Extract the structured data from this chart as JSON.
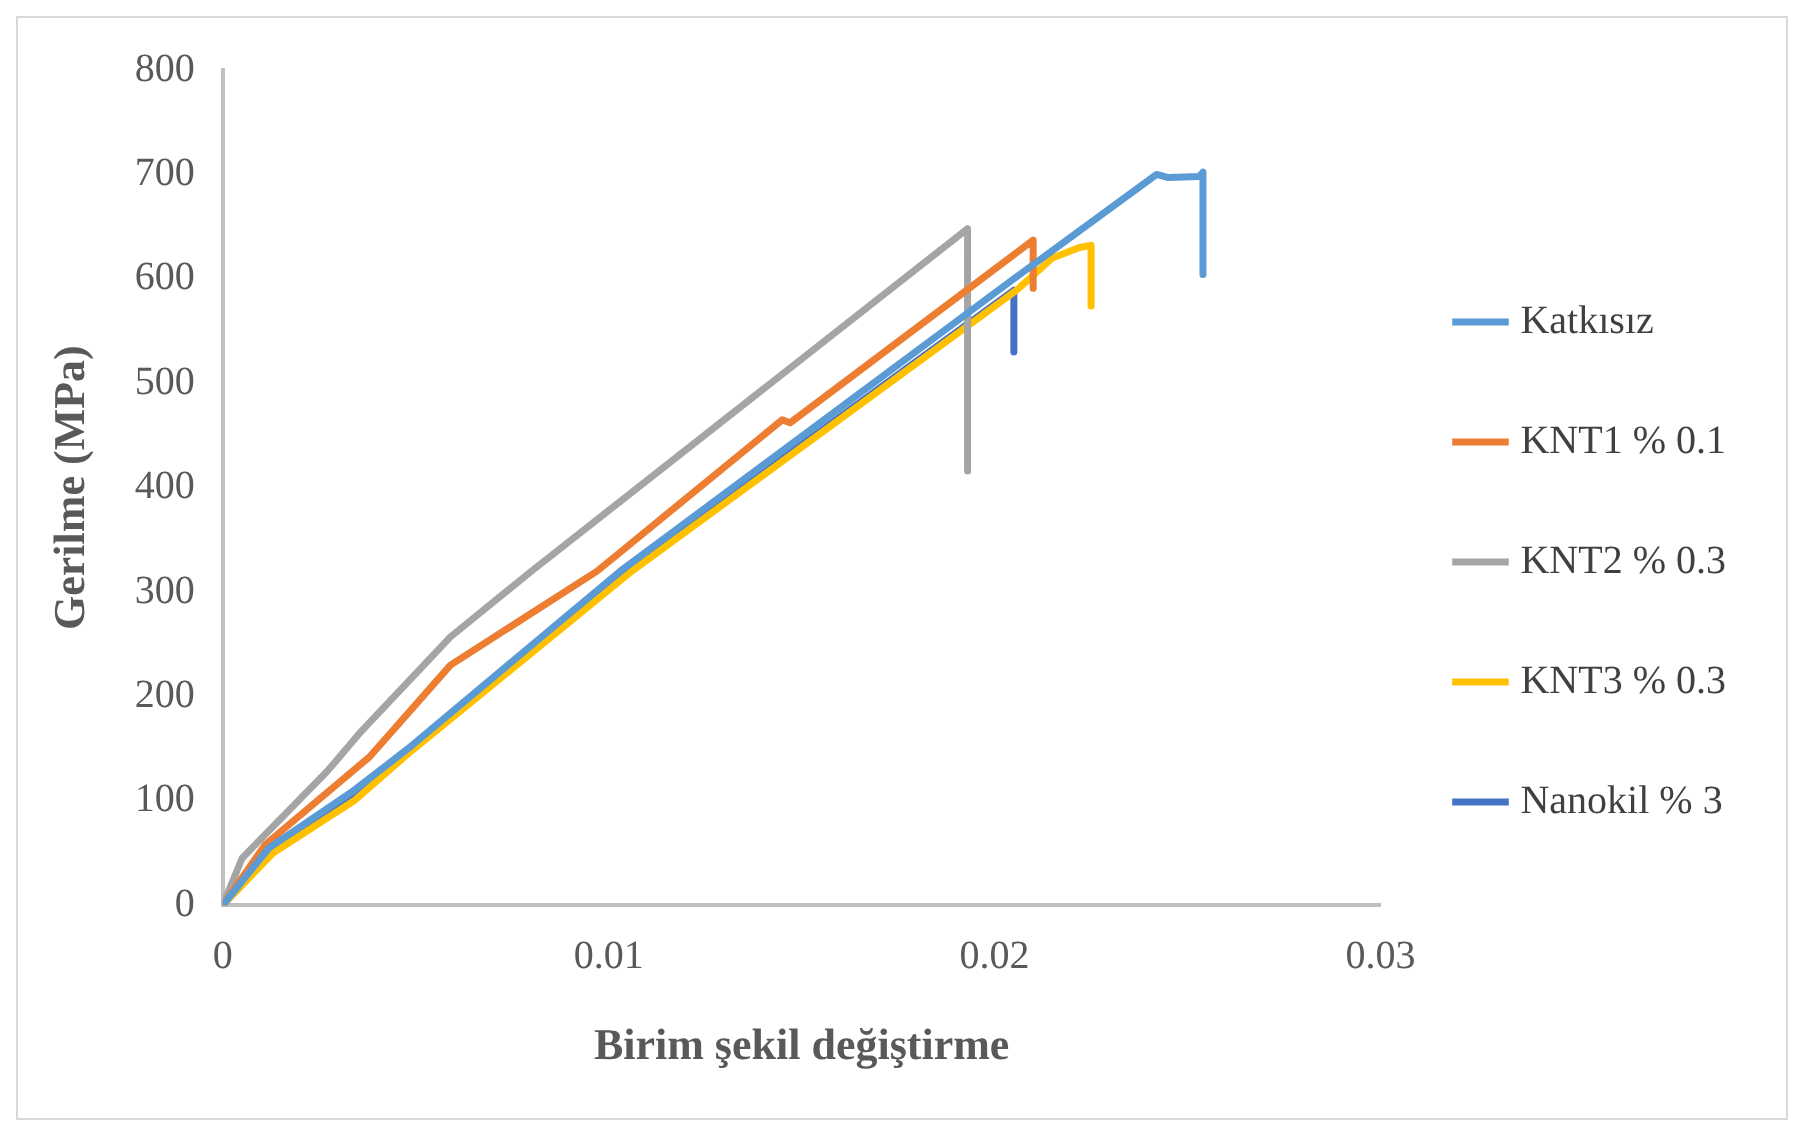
{
  "chart_data": {
    "type": "line",
    "xlabel": "Birim şekil değiştirme",
    "ylabel": "Gerilme (MPa)",
    "xlim": [
      0,
      0.03
    ],
    "xticks": [
      0,
      0.01,
      0.02,
      0.03
    ],
    "ylim": [
      0,
      800
    ],
    "yticks": [
      0,
      100,
      200,
      300,
      400,
      500,
      600,
      700,
      800
    ],
    "grid": false,
    "legend": "right",
    "marker": "none",
    "line_style": "solid",
    "series": [
      {
        "name": "Katkısız",
        "color": "#5b9bd5",
        "x": [
          0,
          0.0012,
          0.0034,
          0.0048,
          0.0103,
          0.0205,
          0.0242,
          0.0245,
          0.0253,
          0.0254,
          0.0254
        ],
        "values": [
          0,
          55,
          110,
          150,
          320,
          600,
          700,
          697,
          698,
          702,
          604
        ]
      },
      {
        "name": "KNT1 % 0.1",
        "color": "#ed7d31",
        "x": [
          0,
          0.0011,
          0.0038,
          0.0059,
          0.0097,
          0.0145,
          0.0147,
          0.021,
          0.021
        ],
        "values": [
          0,
          58,
          142,
          230,
          320,
          465,
          462,
          637,
          591
        ]
      },
      {
        "name": "KNT2 % 0.3",
        "color": "#a5a5a5",
        "x": [
          0,
          0.0005,
          0.0027,
          0.0036,
          0.0059,
          0.008,
          0.0193,
          0.0193
        ],
        "values": [
          0,
          45,
          128,
          167,
          257,
          320,
          648,
          416
        ]
      },
      {
        "name": "KNT3 % 0.3",
        "color": "#ffc000",
        "x": [
          0,
          0.0013,
          0.0034,
          0.0048,
          0.0106,
          0.0206,
          0.0215,
          0.0222,
          0.0225,
          0.0225
        ],
        "values": [
          0,
          50,
          100,
          145,
          320,
          590,
          620,
          630,
          632,
          574
        ]
      },
      {
        "name": "Nanokil % 3",
        "color": "#4472c4",
        "x": [
          0,
          0.0013,
          0.0034,
          0.0048,
          0.0105,
          0.0205,
          0.0205
        ],
        "values": [
          0,
          52,
          104,
          148,
          320,
          589,
          530
        ]
      }
    ]
  }
}
